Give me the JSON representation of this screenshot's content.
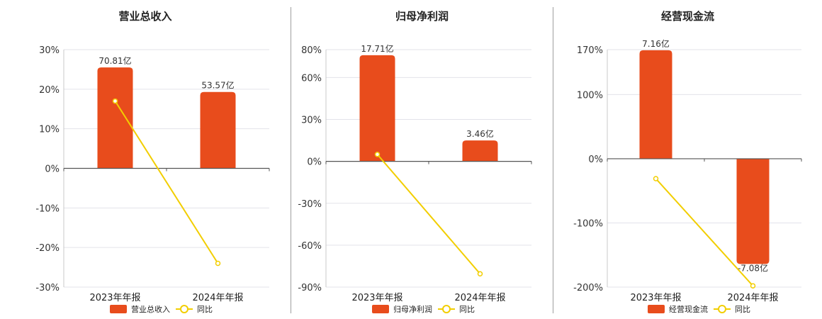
{
  "colors": {
    "bar": "#E84C1C",
    "line": "#F2CE00",
    "grid": "#e3e3ea",
    "axis": "#555555"
  },
  "chart_data": [
    {
      "type": "bar",
      "title": "营业总收入",
      "categories": [
        "2023年年报",
        "2024年年报"
      ],
      "yoy_pct": [
        17,
        -24
      ],
      "bar_labels": [
        "70.81亿",
        "53.57亿"
      ],
      "ylim": [
        -30,
        30
      ],
      "yticks": [
        30,
        20,
        10,
        0,
        -10,
        -20,
        -30
      ],
      "ytick_labels": [
        "30%",
        "20%",
        "10%",
        "0%",
        "-10%",
        "-20%",
        "-30%"
      ],
      "legend": [
        "营业总收入",
        "同比"
      ],
      "legend_position": "bottom"
    },
    {
      "type": "bar",
      "title": "归母净利润",
      "categories": [
        "2023年年报",
        "2024年年报"
      ],
      "yoy_pct": [
        5,
        -80.5
      ],
      "bar_labels": [
        "17.71亿",
        "3.46亿"
      ],
      "ylim": [
        -90,
        80
      ],
      "yticks": [
        80,
        60,
        30,
        0,
        -30,
        -60,
        -90
      ],
      "ytick_labels": [
        "80%",
        "60%",
        "30%",
        "0%",
        "-30%",
        "-60%",
        "-90%"
      ],
      "legend": [
        "归母净利润",
        "同比"
      ],
      "legend_position": "bottom"
    },
    {
      "type": "bar",
      "title": "经营现金流",
      "categories": [
        "2023年年报",
        "2024年年报"
      ],
      "yoy_pct": [
        -31,
        -198
      ],
      "bar_labels": [
        "7.16亿",
        "-7.08亿"
      ],
      "ylim": [
        -200,
        170
      ],
      "yticks": [
        170,
        100,
        0,
        -100,
        -200
      ],
      "ytick_labels": [
        "170%",
        "100%",
        "0%",
        "-100%",
        "-200%"
      ],
      "legend": [
        "经营现金流",
        "同比"
      ],
      "legend_position": "bottom"
    }
  ]
}
